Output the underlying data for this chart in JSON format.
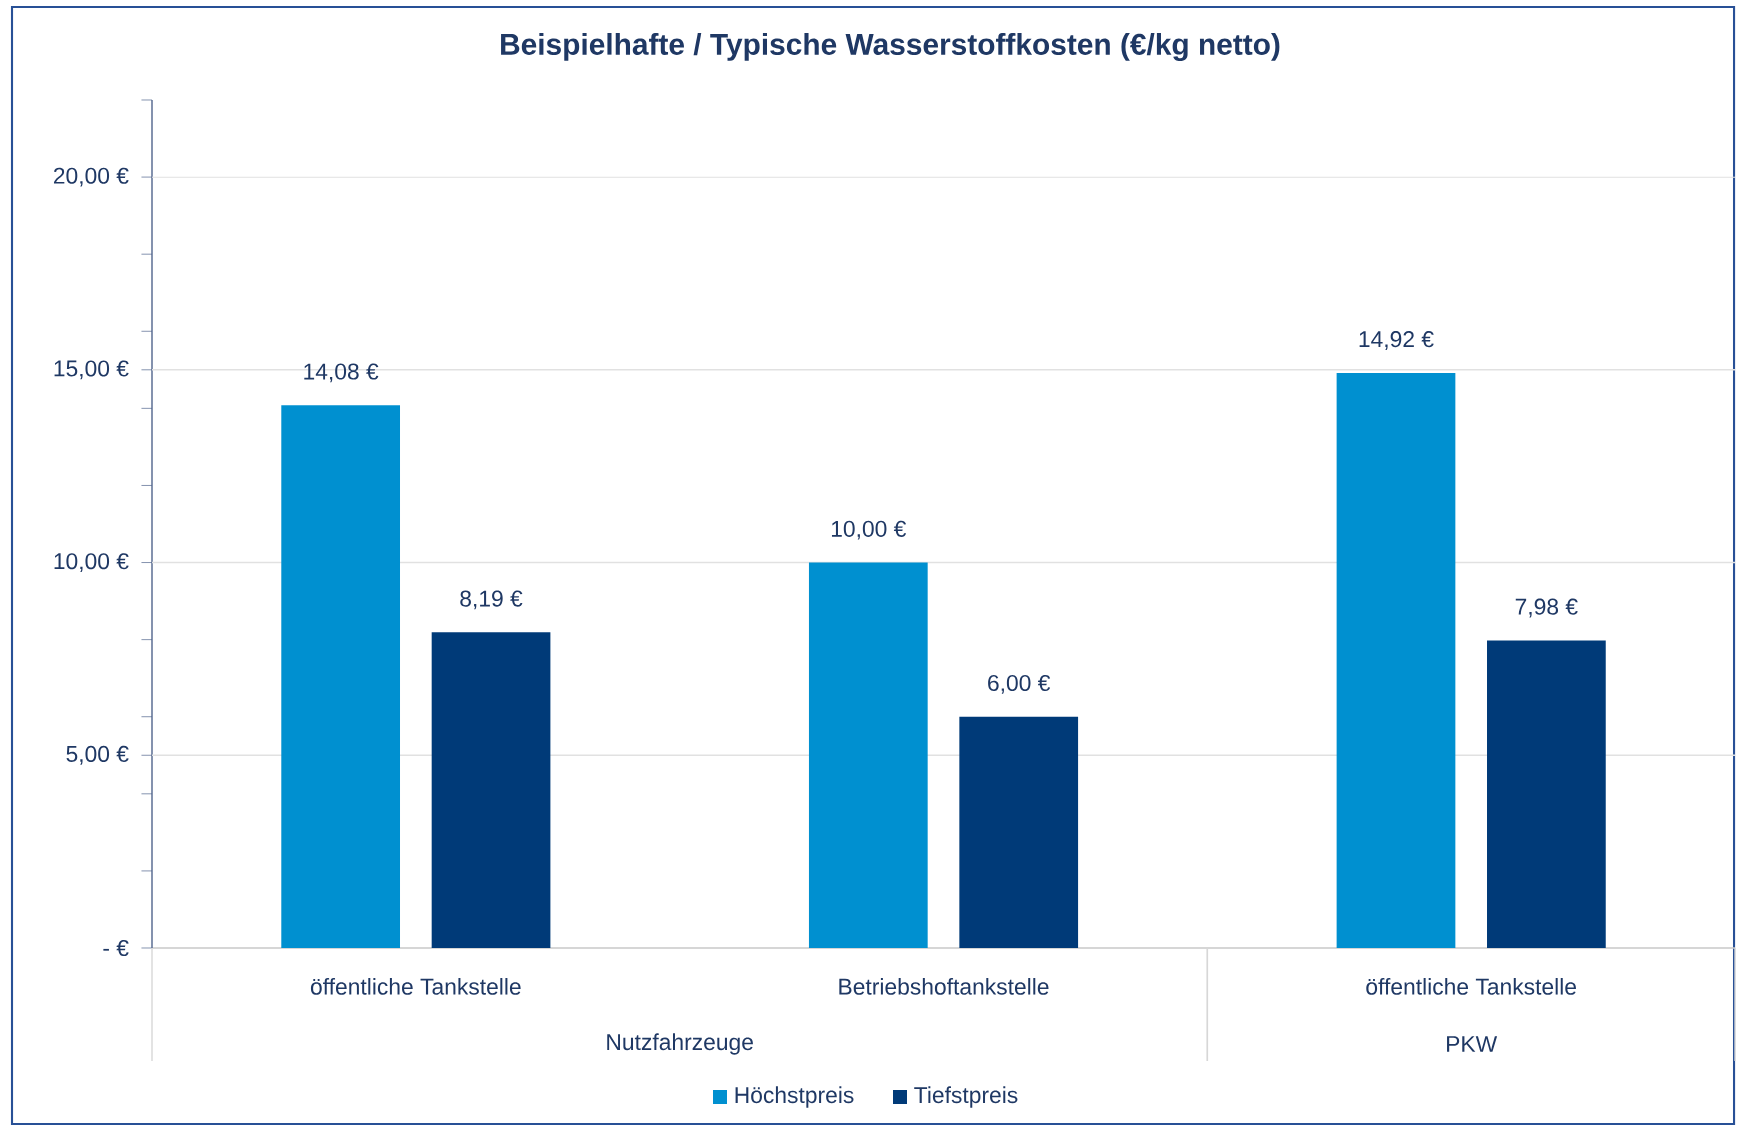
{
  "chart_data": {
    "type": "bar",
    "title": "Beispielhafte / Typische Wasserstoffkosten (€/kg netto)",
    "categories": [
      "öffentliche Tankstelle",
      "Betriebshoftankstelle",
      "öffentliche Tankstelle"
    ],
    "series": [
      {
        "name": "Höchstpreis",
        "color": "#0090d0",
        "values": [
          14.08,
          10.0,
          14.92
        ],
        "value_labels": [
          "14,08 €",
          "10,00 €",
          "14,92 €"
        ]
      },
      {
        "name": "Tiefstpreis",
        "color": "#003a78",
        "values": [
          8.19,
          6.0,
          7.98
        ],
        "value_labels": [
          "8,19 €",
          "6,00 €",
          "7,98 €"
        ]
      }
    ],
    "ylim": [
      0,
      22
    ],
    "yticks": [
      {
        "value": 0,
        "label": "-   €"
      },
      {
        "value": 2,
        "label": null
      },
      {
        "value": 4,
        "label": null
      },
      {
        "value": 5,
        "label": "5,00 €"
      },
      {
        "value": 6,
        "label": null
      },
      {
        "value": 8,
        "label": null
      },
      {
        "value": 10,
        "label": "10,00 €"
      },
      {
        "value": 12,
        "label": null
      },
      {
        "value": 14,
        "label": null
      },
      {
        "value": 15,
        "label": "15,00 €"
      },
      {
        "value": 16,
        "label": null
      },
      {
        "value": 18,
        "label": null
      },
      {
        "value": 20,
        "label": "20,00 €"
      },
      {
        "value": 22,
        "label": null
      }
    ],
    "grid": "y",
    "legend": "bottom",
    "annotations": [
      "Nutzfahrzeuge",
      "PKW"
    ]
  }
}
